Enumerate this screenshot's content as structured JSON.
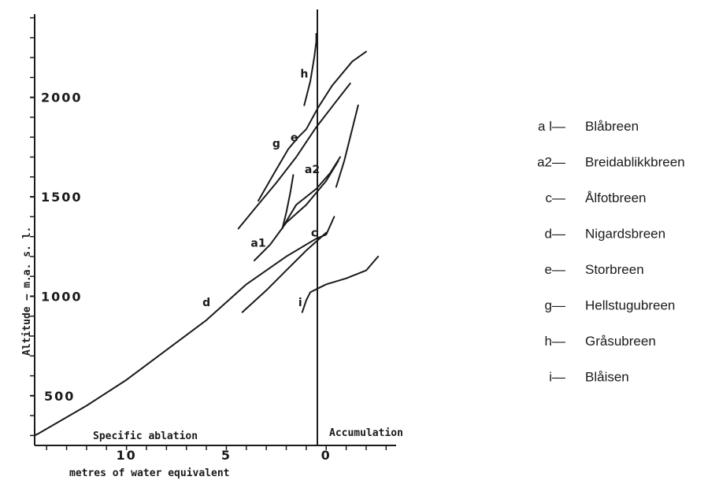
{
  "chart_data": {
    "type": "line",
    "xlabel": "metres of water equivalent",
    "ylabel": "Altitude — m.a. s. l.",
    "x_zone_labels": {
      "left": "Specific ablation",
      "right": "Accumulation"
    },
    "x_ticks": [
      {
        "value": 10,
        "label": "10"
      },
      {
        "value": 5,
        "label": "5"
      },
      {
        "value": 0,
        "label": "0"
      }
    ],
    "y_ticks": [
      {
        "value": 500,
        "label": "500"
      },
      {
        "value": 1000,
        "label": "1000"
      },
      {
        "value": 1500,
        "label": "1500"
      },
      {
        "value": 2000,
        "label": "2000"
      }
    ],
    "xlim": [
      14.6,
      -3.5
    ],
    "ylim": [
      250,
      2450
    ],
    "legend_position": "right",
    "series": [
      {
        "key": "d",
        "label_x": 6.0,
        "label_y": 950,
        "points": [
          [
            14.6,
            300
          ],
          [
            14.4,
            310
          ],
          [
            12,
            450
          ],
          [
            10,
            580
          ],
          [
            8,
            730
          ],
          [
            6,
            880
          ],
          [
            4,
            1060
          ],
          [
            2,
            1200
          ],
          [
            0.5,
            1290
          ],
          [
            0,
            1310
          ],
          [
            -0.4,
            1400
          ]
        ]
      },
      {
        "key": "a1",
        "label_x": 3.4,
        "label_y": 1250,
        "points": [
          [
            3.6,
            1180
          ],
          [
            2.8,
            1260
          ],
          [
            2,
            1370
          ],
          [
            1,
            1460
          ],
          [
            0,
            1580
          ],
          [
            -0.6,
            1680
          ]
        ]
      },
      {
        "key": "c",
        "label_x": 0.6,
        "label_y": 1300,
        "points": [
          [
            4.2,
            920
          ],
          [
            3,
            1030
          ],
          [
            2,
            1130
          ],
          [
            1,
            1230
          ],
          [
            0,
            1320
          ]
        ]
      },
      {
        "key": "a2",
        "label_x": 0.7,
        "label_y": 1620,
        "points": [
          [
            2.1,
            1360
          ],
          [
            1.5,
            1460
          ],
          [
            0.5,
            1540
          ],
          [
            -0.2,
            1620
          ],
          [
            -0.7,
            1700
          ]
        ]
      },
      {
        "key": "a2-branch",
        "points": [
          [
            2.2,
            1340
          ],
          [
            2.0,
            1420
          ],
          [
            1.8,
            1520
          ],
          [
            1.65,
            1610
          ]
        ]
      },
      {
        "key": "e",
        "label_x": 1.6,
        "label_y": 1780,
        "points": [
          [
            4.4,
            1340
          ],
          [
            3.5,
            1450
          ],
          [
            2.5,
            1570
          ],
          [
            1.5,
            1700
          ],
          [
            0.5,
            1850
          ],
          [
            -0.5,
            1980
          ],
          [
            -1.2,
            2070
          ]
        ]
      },
      {
        "key": "g",
        "label_x": 2.5,
        "label_y": 1750,
        "points": [
          [
            3.4,
            1480
          ],
          [
            2.6,
            1620
          ],
          [
            1.9,
            1740
          ],
          [
            1.4,
            1800
          ],
          [
            1.0,
            1840
          ],
          [
            0.4,
            1950
          ],
          [
            -0.3,
            2060
          ],
          [
            -1.3,
            2180
          ],
          [
            -2,
            2230
          ]
        ]
      },
      {
        "key": "a2-right",
        "points": [
          [
            -1.6,
            1960
          ],
          [
            -1.3,
            1840
          ],
          [
            -0.9,
            1680
          ],
          [
            -0.5,
            1550
          ]
        ]
      },
      {
        "key": "h",
        "label_x": 1.1,
        "label_y": 2100,
        "points": [
          [
            1.1,
            1960
          ],
          [
            0.8,
            2080
          ],
          [
            0.6,
            2200
          ],
          [
            0.5,
            2280
          ],
          [
            0.5,
            2320
          ]
        ]
      },
      {
        "key": "i",
        "label_x": 1.3,
        "label_y": 950,
        "points": [
          [
            1.2,
            920
          ],
          [
            1.0,
            980
          ],
          [
            0.8,
            1020
          ],
          [
            0.4,
            1040
          ],
          [
            0,
            1060
          ],
          [
            -1,
            1090
          ],
          [
            -2,
            1130
          ],
          [
            -2.6,
            1200
          ]
        ]
      }
    ]
  },
  "legend": [
    {
      "key": "a l—",
      "name": "Blåbreen"
    },
    {
      "key": "a2—",
      "name": "Breidablikkbreen"
    },
    {
      "key": "c—",
      "name": "Ålfotbreen"
    },
    {
      "key": "d—",
      "name": "Nigardsbreen"
    },
    {
      "key": "e—",
      "name": "Storbreen"
    },
    {
      "key": "g—",
      "name": "Hellstugubreen"
    },
    {
      "key": "h—",
      "name": "Gråsubreen"
    },
    {
      "key": "i—",
      "name": "Blåisen"
    }
  ]
}
